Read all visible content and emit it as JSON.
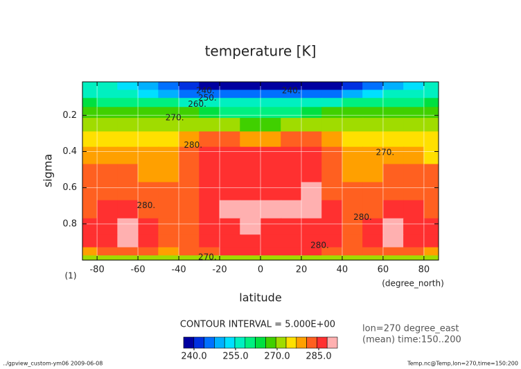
{
  "chart_data": {
    "type": "contour",
    "title": "temperature [K]",
    "x_label": "latitude",
    "x_unit": "(degree_north)",
    "y_label": "sigma",
    "y_unit": "(1)",
    "contour_interval_text": "CONTOUR INTERVAL = 5.000E+00",
    "info": [
      "lon=270 degree_east",
      "(mean) time:150..200"
    ],
    "footer_left": "../gpview_custom-ym06  2009-06-08",
    "footer_right": "Temp.nc@Temp,lon=270,time=150:200",
    "xlim": [
      -87.16,
      87.16
    ],
    "ylim": [
      0.015,
      1.0
    ],
    "xticks": [
      -80,
      -60,
      -40,
      -20,
      0,
      20,
      40,
      60,
      80
    ],
    "yticks": [
      0.2,
      0.4,
      0.6,
      0.8
    ],
    "grid": true,
    "x": [
      -85,
      -75,
      -65,
      -55,
      -45,
      -35,
      -25,
      -15,
      -5,
      5,
      15,
      25,
      35,
      45,
      55,
      65,
      75,
      85
    ],
    "y": [
      0.04,
      0.08,
      0.13,
      0.18,
      0.25,
      0.33,
      0.42,
      0.52,
      0.62,
      0.72,
      0.82,
      0.9,
      0.96,
      0.99
    ],
    "z": [
      [
        256,
        255,
        252,
        248,
        244,
        241,
        239,
        238,
        239,
        239,
        238,
        238,
        239,
        241,
        244,
        248,
        254,
        257
      ],
      [
        258,
        257,
        255,
        252,
        250,
        247,
        245,
        244,
        245,
        245,
        244,
        245,
        247,
        250,
        252,
        255,
        256,
        258
      ],
      [
        263,
        262,
        261,
        260,
        260,
        258,
        256,
        255,
        256,
        256,
        255,
        256,
        258,
        260,
        260,
        261,
        262,
        263
      ],
      [
        268,
        268,
        267,
        267,
        267,
        266,
        264,
        262,
        261,
        261,
        262,
        264,
        266,
        267,
        267,
        267,
        268,
        268
      ],
      [
        272,
        272,
        272,
        272,
        272,
        273,
        272,
        270,
        268,
        268,
        270,
        272,
        273,
        272,
        272,
        272,
        272,
        272
      ],
      [
        276,
        276,
        276,
        276,
        276,
        280,
        282,
        281,
        279,
        279,
        281,
        282,
        280,
        276,
        276,
        276,
        276,
        276
      ],
      [
        278,
        278,
        278,
        278,
        278,
        282,
        286,
        286,
        286,
        286,
        286,
        286,
        282,
        278,
        278,
        278,
        278,
        276
      ],
      [
        281,
        281,
        281,
        280,
        280,
        283,
        286,
        286,
        286,
        286,
        286,
        286,
        283,
        280,
        280,
        281,
        281,
        281
      ],
      [
        283,
        283,
        283,
        282,
        281,
        283,
        286,
        286,
        286,
        286,
        286,
        289,
        283,
        281,
        282,
        283,
        283,
        283
      ],
      [
        284,
        285,
        286,
        284,
        281,
        283,
        286,
        289,
        289,
        289,
        289,
        289,
        286,
        281,
        284,
        286,
        285,
        284
      ],
      [
        285,
        286,
        289,
        286,
        282,
        283,
        286,
        286,
        289,
        286,
        286,
        286,
        285,
        282,
        286,
        289,
        286,
        285
      ],
      [
        285,
        287,
        289,
        287,
        283,
        284,
        286,
        286,
        286,
        286,
        286,
        286,
        286,
        283,
        287,
        289,
        287,
        285
      ],
      [
        280,
        282,
        282,
        281,
        280,
        282,
        284,
        285,
        285,
        285,
        285,
        285,
        284,
        281,
        281,
        282,
        282,
        280
      ],
      [
        272,
        272,
        271,
        272,
        272,
        272,
        272,
        272,
        272,
        272,
        272,
        272,
        272,
        272,
        272,
        272,
        272,
        271
      ]
    ],
    "colorbar": {
      "lim": [
        236.25,
        291.75
      ],
      "colors": [
        "#0000a0",
        "#0030e0",
        "#0070ff",
        "#00b0ff",
        "#00e0ff",
        "#00f0c0",
        "#00f080",
        "#00e040",
        "#40d000",
        "#a0dc00",
        "#ffe000",
        "#ffa000",
        "#ff6020",
        "#ff3030",
        "#ffb0b0"
      ],
      "ticks": [
        {
          "value": 240,
          "label": "240.0"
        },
        {
          "value": 255,
          "label": "255.0"
        },
        {
          "value": 270,
          "label": "270.0"
        },
        {
          "value": 285,
          "label": "285.0"
        }
      ]
    },
    "annotations": [
      {
        "text": "240.",
        "x": -27,
        "y": 0.065
      },
      {
        "text": "240.",
        "x": 15,
        "y": 0.065
      },
      {
        "text": "250.",
        "x": -26,
        "y": 0.105
      },
      {
        "text": "260.",
        "x": -31,
        "y": 0.14
      },
      {
        "text": "270.",
        "x": -42,
        "y": 0.215
      },
      {
        "text": "280.",
        "x": -33,
        "y": 0.365
      },
      {
        "text": "270.",
        "x": 61,
        "y": 0.405
      },
      {
        "text": "280.",
        "x": -56,
        "y": 0.7
      },
      {
        "text": "280.",
        "x": 50,
        "y": 0.765
      },
      {
        "text": "280.",
        "x": 29,
        "y": 0.92
      },
      {
        "text": "270.",
        "x": -26,
        "y": 0.985
      }
    ]
  }
}
